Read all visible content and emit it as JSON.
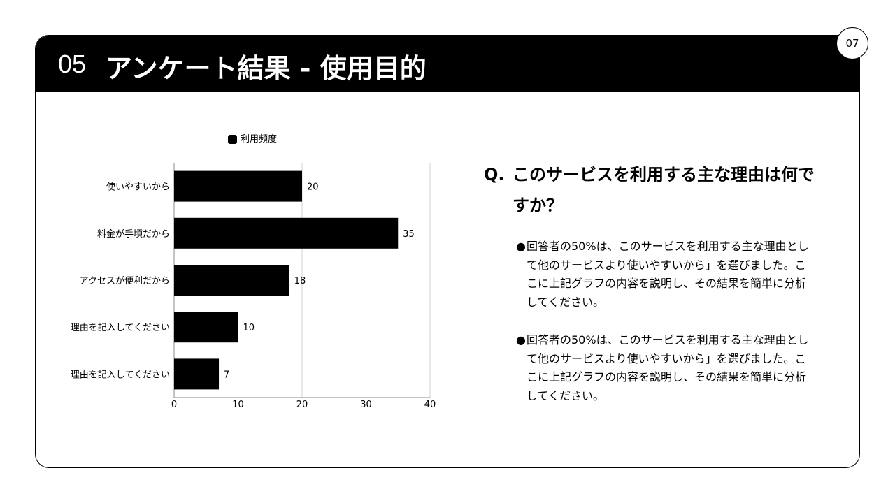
{
  "header": {
    "section_number": "05",
    "title": "アンケート結果 - 使用目的",
    "page_number": "07"
  },
  "chart_data": {
    "type": "bar",
    "orientation": "horizontal",
    "categories": [
      "使いやすいから",
      "料金が手頃だから",
      "アクセスが便利だから",
      "理由を記入してください",
      "理由を記入してください"
    ],
    "series": [
      {
        "name": "利用頻度",
        "values": [
          20,
          35,
          18,
          10,
          7
        ],
        "color": "#000000"
      }
    ],
    "xlim": [
      0,
      40
    ],
    "xticks": [
      "0",
      "10",
      "20",
      "30",
      "40"
    ],
    "grid": true,
    "legend": "top",
    "data_labels": true
  },
  "question": {
    "prefix": "Q.",
    "text": "このサービスを利用する主な理由は何ですか？"
  },
  "bullets": [
    "回答者の50%は、このサービスを利用する主な理由として他のサービスより使いやすいから」を選びました。ここに上記グラフの内容を説明し、その結果を簡単に分析してください。",
    "回答者の50%は、このサービスを利用する主な理由として他のサービスより使いやすいから」を選びました。ここに上記グラフの内容を説明し、その結果を簡単に分析してください。"
  ]
}
